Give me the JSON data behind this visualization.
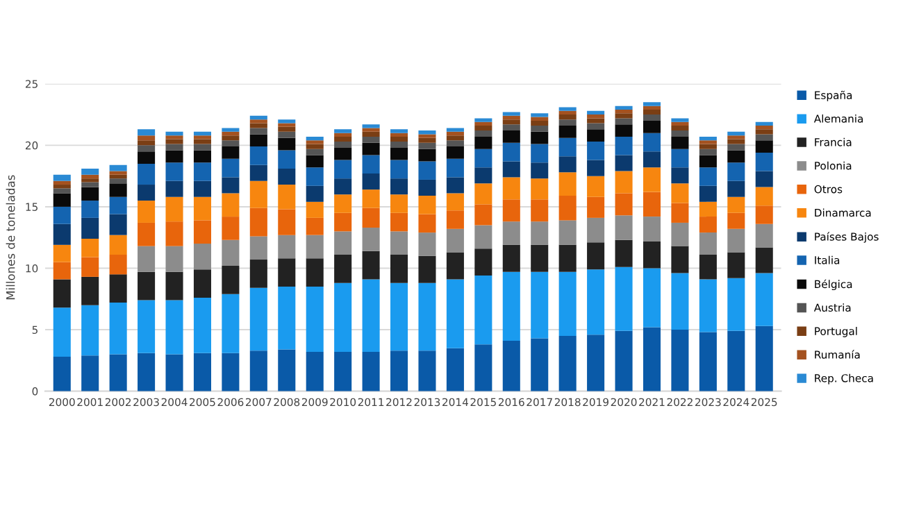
{
  "chart_data": {
    "type": "bar",
    "stacked": true,
    "ylabel": "Millones de toneladas",
    "categories": [
      "2000",
      "2001",
      "2002",
      "2003",
      "2004",
      "2005",
      "2006",
      "2007",
      "2008",
      "2009",
      "2010",
      "2011",
      "2012",
      "2013",
      "2014",
      "2015",
      "2016",
      "2017",
      "2018",
      "2019",
      "2020",
      "2021",
      "2022",
      "2023",
      "2024",
      "2025"
    ],
    "series": [
      {
        "name": "España",
        "color": "#0a5aa8",
        "values": [
          2.8,
          2.9,
          3.0,
          3.1,
          3.0,
          3.1,
          3.1,
          3.3,
          3.4,
          3.2,
          3.2,
          3.2,
          3.3,
          3.3,
          3.5,
          3.8,
          4.1,
          4.3,
          4.5,
          4.6,
          4.9,
          5.2,
          5.0,
          4.8,
          4.9,
          5.3
        ]
      },
      {
        "name": "Alemania",
        "color": "#1a9bef",
        "values": [
          4.0,
          4.1,
          4.2,
          4.3,
          4.4,
          4.5,
          4.8,
          5.1,
          5.1,
          5.3,
          5.6,
          5.9,
          5.5,
          5.5,
          5.6,
          5.6,
          5.6,
          5.4,
          5.2,
          5.3,
          5.2,
          4.8,
          4.6,
          4.3,
          4.3,
          4.3
        ]
      },
      {
        "name": "Francia",
        "color": "#222222",
        "values": [
          2.3,
          2.3,
          2.3,
          2.3,
          2.3,
          2.3,
          2.3,
          2.3,
          2.3,
          2.3,
          2.3,
          2.3,
          2.3,
          2.2,
          2.2,
          2.2,
          2.2,
          2.2,
          2.2,
          2.2,
          2.2,
          2.2,
          2.2,
          2.0,
          2.1,
          2.1
        ]
      },
      {
        "name": "Polonia",
        "color": "#8c8c8c",
        "values": [
          null,
          null,
          null,
          2.1,
          2.1,
          2.1,
          2.1,
          1.9,
          1.9,
          1.9,
          1.9,
          1.9,
          1.9,
          1.9,
          1.9,
          1.9,
          1.9,
          1.9,
          2.0,
          2.0,
          2.0,
          2.0,
          1.9,
          1.8,
          1.9,
          1.9
        ]
      },
      {
        "name": "Otros",
        "color": "#e8650c",
        "values": [
          1.4,
          1.6,
          1.6,
          1.9,
          2.0,
          1.9,
          1.9,
          2.3,
          2.1,
          1.4,
          1.5,
          1.6,
          1.5,
          1.5,
          1.5,
          1.7,
          1.8,
          1.8,
          2.0,
          1.7,
          1.8,
          2.0,
          1.6,
          1.3,
          1.3,
          1.5
        ]
      },
      {
        "name": "Dinamarca",
        "color": "#f7860f",
        "values": [
          1.4,
          1.5,
          1.6,
          1.8,
          2.0,
          1.9,
          1.9,
          2.2,
          2.0,
          1.3,
          1.5,
          1.5,
          1.5,
          1.5,
          1.4,
          1.7,
          1.8,
          1.7,
          1.9,
          1.7,
          1.8,
          2.0,
          1.6,
          1.2,
          1.3,
          1.5
        ]
      },
      {
        "name": "Países Bajos",
        "color": "#0b3a6e",
        "values": [
          1.7,
          1.7,
          1.7,
          1.3,
          1.3,
          1.3,
          1.3,
          1.3,
          1.3,
          1.3,
          1.3,
          1.3,
          1.3,
          1.3,
          1.3,
          1.3,
          1.3,
          1.3,
          1.3,
          1.3,
          1.3,
          1.3,
          1.3,
          1.3,
          1.3,
          1.3
        ]
      },
      {
        "name": "Italia",
        "color": "#1464b0",
        "values": [
          1.4,
          1.4,
          1.4,
          1.7,
          1.5,
          1.5,
          1.5,
          1.5,
          1.5,
          1.5,
          1.5,
          1.5,
          1.5,
          1.5,
          1.5,
          1.5,
          1.5,
          1.5,
          1.5,
          1.5,
          1.5,
          1.5,
          1.5,
          1.5,
          1.5,
          1.5
        ]
      },
      {
        "name": "Bélgica",
        "color": "#0a0a0a",
        "values": [
          1.1,
          1.1,
          1.1,
          1.0,
          1.0,
          1.0,
          1.0,
          1.0,
          1.0,
          1.0,
          1.0,
          1.0,
          1.0,
          1.0,
          1.0,
          1.0,
          1.0,
          1.0,
          1.0,
          1.0,
          1.0,
          1.0,
          1.0,
          1.0,
          1.0,
          1.0
        ]
      },
      {
        "name": "Austria",
        "color": "#555555",
        "values": [
          0.4,
          0.4,
          0.4,
          0.5,
          0.5,
          0.5,
          0.5,
          0.5,
          0.5,
          0.5,
          0.5,
          0.5,
          0.5,
          0.5,
          0.5,
          0.5,
          0.5,
          0.5,
          0.5,
          0.5,
          0.5,
          0.5,
          0.5,
          0.5,
          0.5,
          0.5
        ]
      },
      {
        "name": "Portugal",
        "color": "#7a3e14",
        "values": [
          0.3,
          0.3,
          0.3,
          0.4,
          0.4,
          0.4,
          0.4,
          0.4,
          0.4,
          0.4,
          0.4,
          0.4,
          0.4,
          0.4,
          0.4,
          0.4,
          0.4,
          0.4,
          0.4,
          0.4,
          0.4,
          0.4,
          0.4,
          0.4,
          0.4,
          0.4
        ]
      },
      {
        "name": "Rumanía",
        "color": "#a45220",
        "values": [
          0.3,
          0.3,
          0.3,
          0.4,
          0.3,
          0.3,
          0.3,
          0.3,
          0.3,
          0.3,
          0.3,
          0.3,
          0.3,
          0.3,
          0.3,
          0.3,
          0.3,
          0.3,
          0.3,
          0.3,
          0.3,
          0.3,
          0.3,
          0.3,
          0.3,
          0.3
        ]
      },
      {
        "name": "Rep. Checa",
        "color": "#2a8ad4",
        "values": [
          0.5,
          0.5,
          0.5,
          0.5,
          0.3,
          0.3,
          0.3,
          0.3,
          0.3,
          0.3,
          0.3,
          0.3,
          0.3,
          0.3,
          0.3,
          0.3,
          0.3,
          0.3,
          0.3,
          0.3,
          0.3,
          0.3,
          0.3,
          0.3,
          0.3,
          0.3
        ]
      }
    ],
    "ylim": [
      0,
      25
    ],
    "yticks": [
      0,
      5,
      10,
      15,
      20,
      25
    ],
    "grid": "y",
    "legend": "right"
  }
}
